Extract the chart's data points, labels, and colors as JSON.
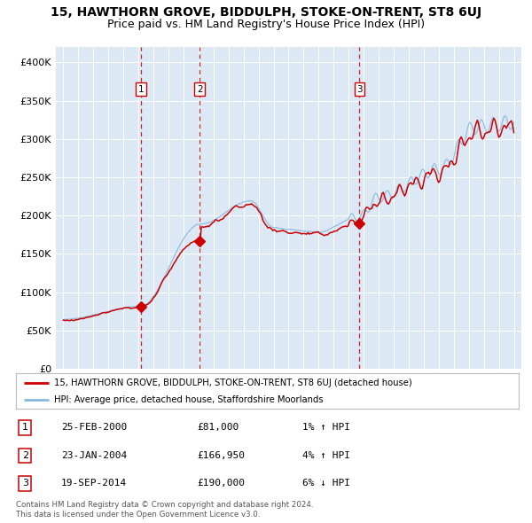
{
  "title": "15, HAWTHORN GROVE, BIDDULPH, STOKE-ON-TRENT, ST8 6UJ",
  "subtitle": "Price paid vs. HM Land Registry's House Price Index (HPI)",
  "xlim": [
    1994.5,
    2025.5
  ],
  "ylim": [
    0,
    420000
  ],
  "yticks": [
    0,
    50000,
    100000,
    150000,
    200000,
    250000,
    300000,
    350000,
    400000
  ],
  "ytick_labels": [
    "£0",
    "£50K",
    "£100K",
    "£150K",
    "£200K",
    "£250K",
    "£300K",
    "£350K",
    "£400K"
  ],
  "xticks": [
    1995,
    1996,
    1997,
    1998,
    1999,
    2000,
    2001,
    2002,
    2003,
    2004,
    2005,
    2006,
    2007,
    2008,
    2009,
    2010,
    2011,
    2012,
    2013,
    2014,
    2015,
    2016,
    2017,
    2018,
    2019,
    2020,
    2021,
    2022,
    2023,
    2024,
    2025
  ],
  "background_color": "#ffffff",
  "plot_bg_color": "#dce9f5",
  "grid_color": "#ffffff",
  "line_color_red": "#cc0000",
  "line_color_blue": "#89b8df",
  "purchase_dates": [
    2000.15,
    2004.07,
    2014.72
  ],
  "purchase_prices": [
    81000,
    166950,
    190000
  ],
  "purchase_labels": [
    "1",
    "2",
    "3"
  ],
  "vline_color": "#cc0000",
  "legend_line1": "15, HAWTHORN GROVE, BIDDULPH, STOKE-ON-TRENT, ST8 6UJ (detached house)",
  "legend_line2": "HPI: Average price, detached house, Staffordshire Moorlands",
  "table_rows": [
    [
      "1",
      "25-FEB-2000",
      "£81,000",
      "1% ↑ HPI"
    ],
    [
      "2",
      "23-JAN-2004",
      "£166,950",
      "4% ↑ HPI"
    ],
    [
      "3",
      "19-SEP-2014",
      "£190,000",
      "6% ↓ HPI"
    ]
  ],
  "footnote": "Contains HM Land Registry data © Crown copyright and database right 2024.\nThis data is licensed under the Open Government Licence v3.0.",
  "title_fontsize": 10,
  "subtitle_fontsize": 9
}
